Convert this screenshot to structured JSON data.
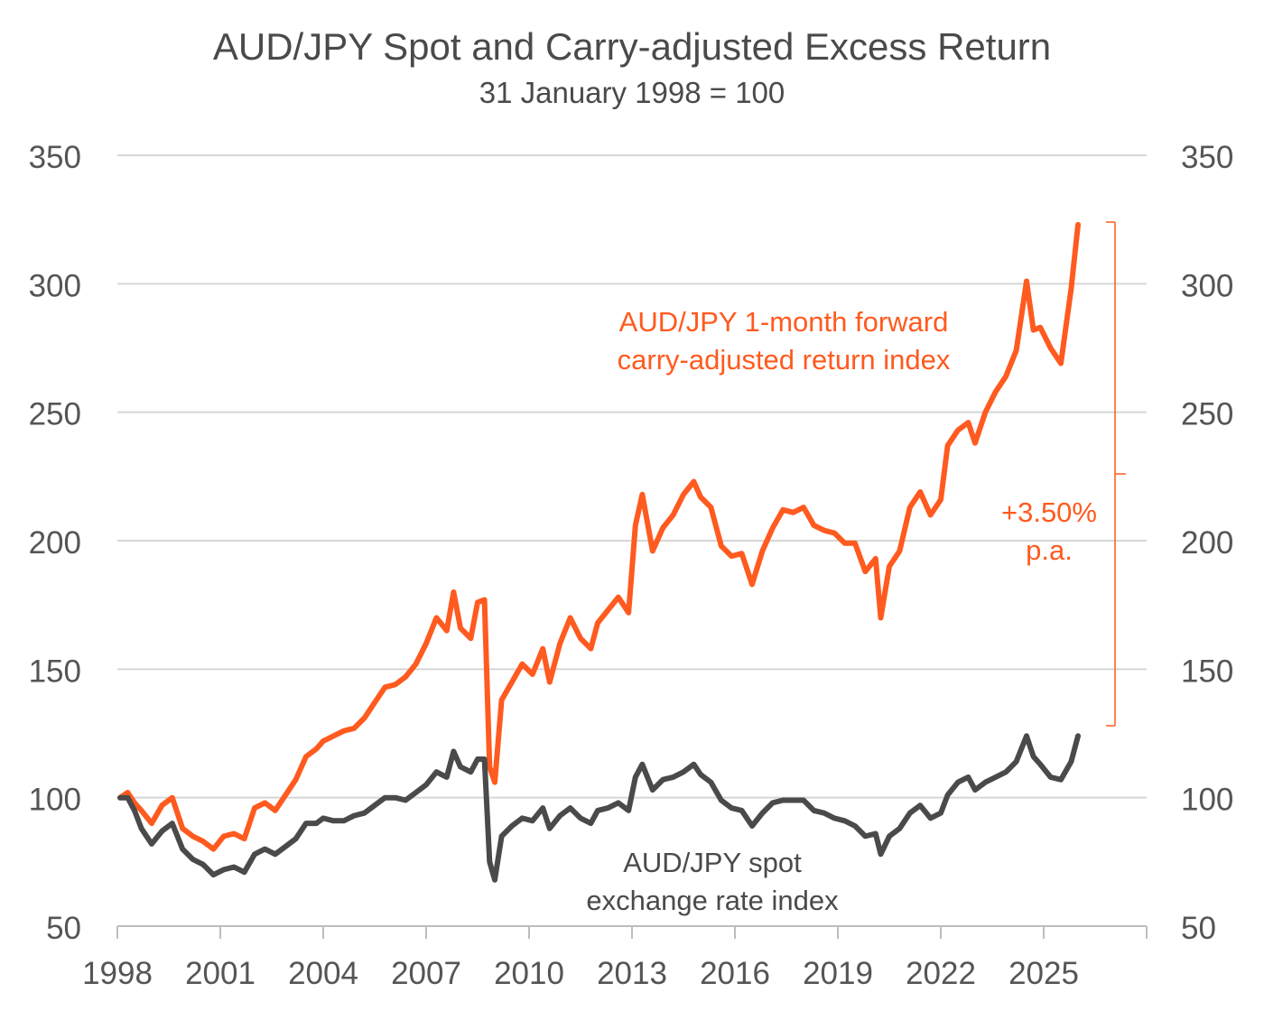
{
  "chart_data": {
    "type": "line",
    "title": "AUD/JPY Spot and Carry-adjusted Excess Return",
    "subtitle": "31 January 1998 = 100",
    "xlabel": "",
    "ylabel": "",
    "xlim": [
      1998,
      2028
    ],
    "ylim": [
      50,
      350
    ],
    "y_ticks": [
      50,
      100,
      150,
      200,
      250,
      300,
      350
    ],
    "y_tick_labels": [
      "50",
      "100",
      "150",
      "200",
      "250",
      "300",
      "350"
    ],
    "x_ticks": [
      1998,
      2001,
      2004,
      2007,
      2010,
      2013,
      2016,
      2019,
      2022,
      2025
    ],
    "x_tick_labels": [
      "1998",
      "2001",
      "2004",
      "2007",
      "2010",
      "2013",
      "2016",
      "2019",
      "2022",
      "2025"
    ],
    "grid": "horizontal",
    "dual_y_axis": true,
    "legend": "inline labels",
    "series": [
      {
        "key": "carry",
        "label_lines": [
          "AUD/JPY 1-month forward",
          "carry-adjusted return index"
        ],
        "color": "#ff5a1f",
        "x": [
          1998.08,
          1998.3,
          1998.5,
          1998.7,
          1999.0,
          1999.3,
          1999.6,
          1999.9,
          2000.2,
          2000.5,
          2000.8,
          2001.1,
          2001.4,
          2001.7,
          2002.0,
          2002.3,
          2002.6,
          2002.9,
          2003.2,
          2003.5,
          2003.8,
          2004.0,
          2004.3,
          2004.6,
          2004.9,
          2005.2,
          2005.5,
          2005.8,
          2006.1,
          2006.4,
          2006.7,
          2007.0,
          2007.3,
          2007.6,
          2007.8,
          2008.0,
          2008.3,
          2008.5,
          2008.7,
          2008.85,
          2009.0,
          2009.2,
          2009.5,
          2009.8,
          2010.1,
          2010.4,
          2010.6,
          2010.9,
          2011.2,
          2011.5,
          2011.8,
          2012.0,
          2012.3,
          2012.6,
          2012.9,
          2013.1,
          2013.3,
          2013.6,
          2013.9,
          2014.2,
          2014.5,
          2014.8,
          2015.0,
          2015.3,
          2015.6,
          2015.9,
          2016.2,
          2016.5,
          2016.8,
          2017.1,
          2017.4,
          2017.7,
          2018.0,
          2018.3,
          2018.6,
          2018.9,
          2019.2,
          2019.5,
          2019.8,
          2020.1,
          2020.25,
          2020.5,
          2020.8,
          2021.1,
          2021.4,
          2021.7,
          2022.0,
          2022.2,
          2022.5,
          2022.8,
          2023.0,
          2023.3,
          2023.6,
          2023.9,
          2024.2,
          2024.5,
          2024.7,
          2024.9,
          2025.2,
          2025.5,
          2025.8,
          2026.0
        ],
        "values": [
          100,
          102,
          98,
          95,
          90,
          97,
          100,
          88,
          85,
          83,
          80,
          85,
          86,
          84,
          96,
          98,
          95,
          101,
          107,
          116,
          119,
          122,
          124,
          126,
          127,
          131,
          137,
          143,
          144,
          147,
          152,
          160,
          170,
          165,
          180,
          166,
          162,
          176,
          177,
          112,
          106,
          138,
          145,
          152,
          148,
          158,
          145,
          160,
          170,
          162,
          158,
          168,
          173,
          178,
          172,
          206,
          218,
          196,
          205,
          210,
          218,
          223,
          217,
          213,
          198,
          194,
          195,
          183,
          196,
          205,
          212,
          211,
          213,
          206,
          204,
          203,
          199,
          199,
          188,
          193,
          170,
          190,
          196,
          213,
          219,
          210,
          216,
          237,
          243,
          246,
          238,
          250,
          258,
          264,
          274,
          301,
          282,
          283,
          275,
          269,
          298,
          323
        ]
      },
      {
        "key": "spot",
        "label_lines": [
          "AUD/JPY spot",
          "exchange rate index"
        ],
        "color": "#4a4a4a",
        "x": [
          1998.08,
          1998.3,
          1998.5,
          1998.7,
          1999.0,
          1999.3,
          1999.6,
          1999.9,
          2000.2,
          2000.5,
          2000.8,
          2001.1,
          2001.4,
          2001.7,
          2002.0,
          2002.3,
          2002.6,
          2002.9,
          2003.2,
          2003.5,
          2003.8,
          2004.0,
          2004.3,
          2004.6,
          2004.9,
          2005.2,
          2005.5,
          2005.8,
          2006.1,
          2006.4,
          2006.7,
          2007.0,
          2007.3,
          2007.6,
          2007.8,
          2008.0,
          2008.3,
          2008.5,
          2008.7,
          2008.85,
          2009.0,
          2009.2,
          2009.5,
          2009.8,
          2010.1,
          2010.4,
          2010.6,
          2010.9,
          2011.2,
          2011.5,
          2011.8,
          2012.0,
          2012.3,
          2012.6,
          2012.9,
          2013.1,
          2013.3,
          2013.6,
          2013.9,
          2014.2,
          2014.5,
          2014.8,
          2015.0,
          2015.3,
          2015.6,
          2015.9,
          2016.2,
          2016.5,
          2016.8,
          2017.1,
          2017.4,
          2017.7,
          2018.0,
          2018.3,
          2018.6,
          2018.9,
          2019.2,
          2019.5,
          2019.8,
          2020.1,
          2020.25,
          2020.5,
          2020.8,
          2021.1,
          2021.4,
          2021.7,
          2022.0,
          2022.2,
          2022.5,
          2022.8,
          2023.0,
          2023.3,
          2023.6,
          2023.9,
          2024.2,
          2024.5,
          2024.7,
          2024.9,
          2025.2,
          2025.5,
          2025.8,
          2026.0
        ],
        "values": [
          100,
          100,
          95,
          88,
          82,
          87,
          90,
          80,
          76,
          74,
          70,
          72,
          73,
          71,
          78,
          80,
          78,
          81,
          84,
          90,
          90,
          92,
          91,
          91,
          93,
          94,
          97,
          100,
          100,
          99,
          102,
          105,
          110,
          108,
          118,
          112,
          110,
          115,
          115,
          75,
          68,
          85,
          89,
          92,
          91,
          96,
          88,
          93,
          96,
          92,
          90,
          95,
          96,
          98,
          95,
          108,
          113,
          103,
          107,
          108,
          110,
          113,
          109,
          106,
          99,
          96,
          95,
          89,
          94,
          98,
          99,
          99,
          99,
          95,
          94,
          92,
          91,
          89,
          85,
          86,
          78,
          85,
          88,
          94,
          97,
          92,
          94,
          101,
          106,
          108,
          103,
          106,
          108,
          110,
          114,
          124,
          116,
          113,
          108,
          107,
          114,
          124
        ]
      }
    ],
    "annotation": {
      "text_lines": [
        "+3.50%",
        "p.a."
      ],
      "color": "#ff5a1f",
      "bracket_from": 128,
      "bracket_to": 324
    }
  }
}
